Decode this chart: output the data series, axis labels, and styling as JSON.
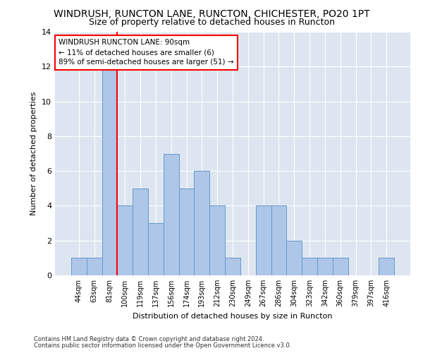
{
  "title1": "WINDRUSH, RUNCTON LANE, RUNCTON, CHICHESTER, PO20 1PT",
  "title2": "Size of property relative to detached houses in Runcton",
  "xlabel": "Distribution of detached houses by size in Runcton",
  "ylabel": "Number of detached properties",
  "categories": [
    "44sqm",
    "63sqm",
    "81sqm",
    "100sqm",
    "119sqm",
    "137sqm",
    "156sqm",
    "174sqm",
    "193sqm",
    "212sqm",
    "230sqm",
    "249sqm",
    "267sqm",
    "286sqm",
    "304sqm",
    "323sqm",
    "342sqm",
    "360sqm",
    "379sqm",
    "397sqm",
    "416sqm"
  ],
  "values": [
    1,
    1,
    12,
    4,
    5,
    3,
    7,
    5,
    6,
    4,
    1,
    0,
    4,
    4,
    2,
    1,
    1,
    1,
    0,
    0,
    1
  ],
  "bar_color": "#aec6e8",
  "bar_edge_color": "#6699cc",
  "red_line_index": 2,
  "annotation_lines": [
    "WINDRUSH RUNCTON LANE: 90sqm",
    "← 11% of detached houses are smaller (6)",
    "89% of semi-detached houses are larger (51) →"
  ],
  "footer1": "Contains HM Land Registry data © Crown copyright and database right 2024.",
  "footer2": "Contains public sector information licensed under the Open Government Licence v3.0.",
  "ylim": [
    0,
    14
  ],
  "yticks": [
    0,
    2,
    4,
    6,
    8,
    10,
    12,
    14
  ],
  "bg_color": "#dde6f0",
  "grid_color": "#ffffff",
  "title1_fontsize": 10,
  "title2_fontsize": 9
}
